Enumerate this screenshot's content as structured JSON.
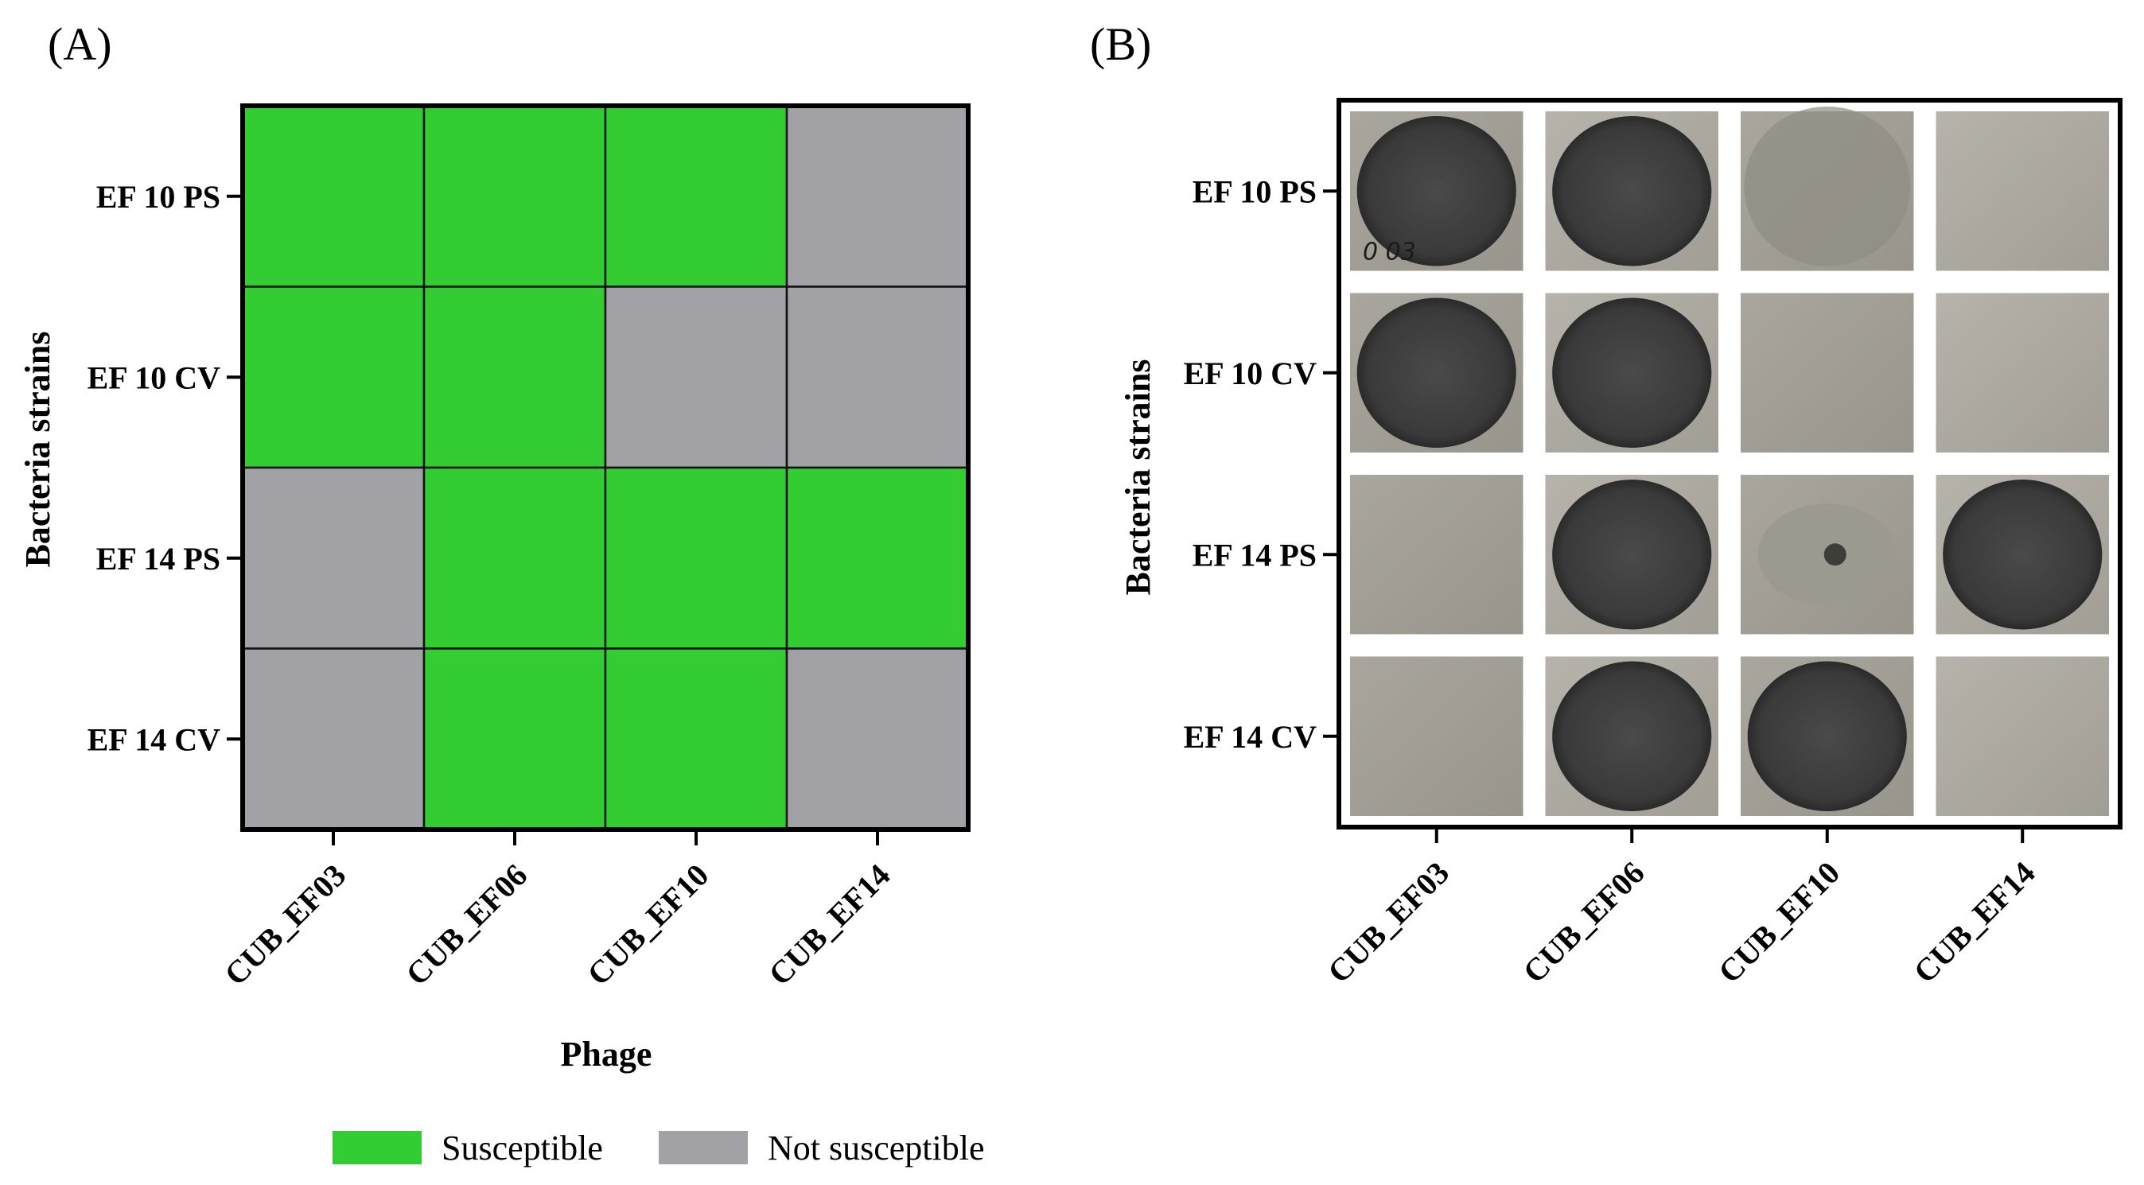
{
  "panels": {
    "a_label": "(A)",
    "b_label": "(B)"
  },
  "chart_data": [
    {
      "type": "heatmap",
      "panel": "A",
      "xlabel": "Phage",
      "ylabel": "Bacteria strains",
      "x_categories": [
        "CUB_EF03",
        "CUB_EF06",
        "CUB_EF10",
        "CUB_EF14"
      ],
      "y_categories": [
        "EF 10 PS",
        "EF 10 CV",
        "EF 14 PS",
        "EF 14 CV"
      ],
      "values": [
        [
          1,
          1,
          1,
          0
        ],
        [
          1,
          1,
          0,
          0
        ],
        [
          0,
          1,
          1,
          1
        ],
        [
          0,
          1,
          1,
          0
        ]
      ],
      "value_legend": {
        "1": "Susceptible",
        "0": "Not susceptible"
      },
      "colors": {
        "1": "#33cc33",
        "0": "#a2a1a6"
      }
    },
    {
      "type": "table",
      "panel": "B",
      "description_kind": "photo-grid",
      "ylabel": "Bacteria strains",
      "x_categories": [
        "CUB_EF03",
        "CUB_EF06",
        "CUB_EF10",
        "CUB_EF14"
      ],
      "y_categories": [
        "EF 10 PS",
        "EF 10 CV",
        "EF 14 PS",
        "EF 14 CV"
      ],
      "photo_annotation": "0 03"
    }
  ],
  "legend": {
    "items": [
      {
        "label": "Susceptible",
        "color": "#33cc33"
      },
      {
        "label": "Not susceptible",
        "color": "#a2a1a6"
      }
    ]
  }
}
